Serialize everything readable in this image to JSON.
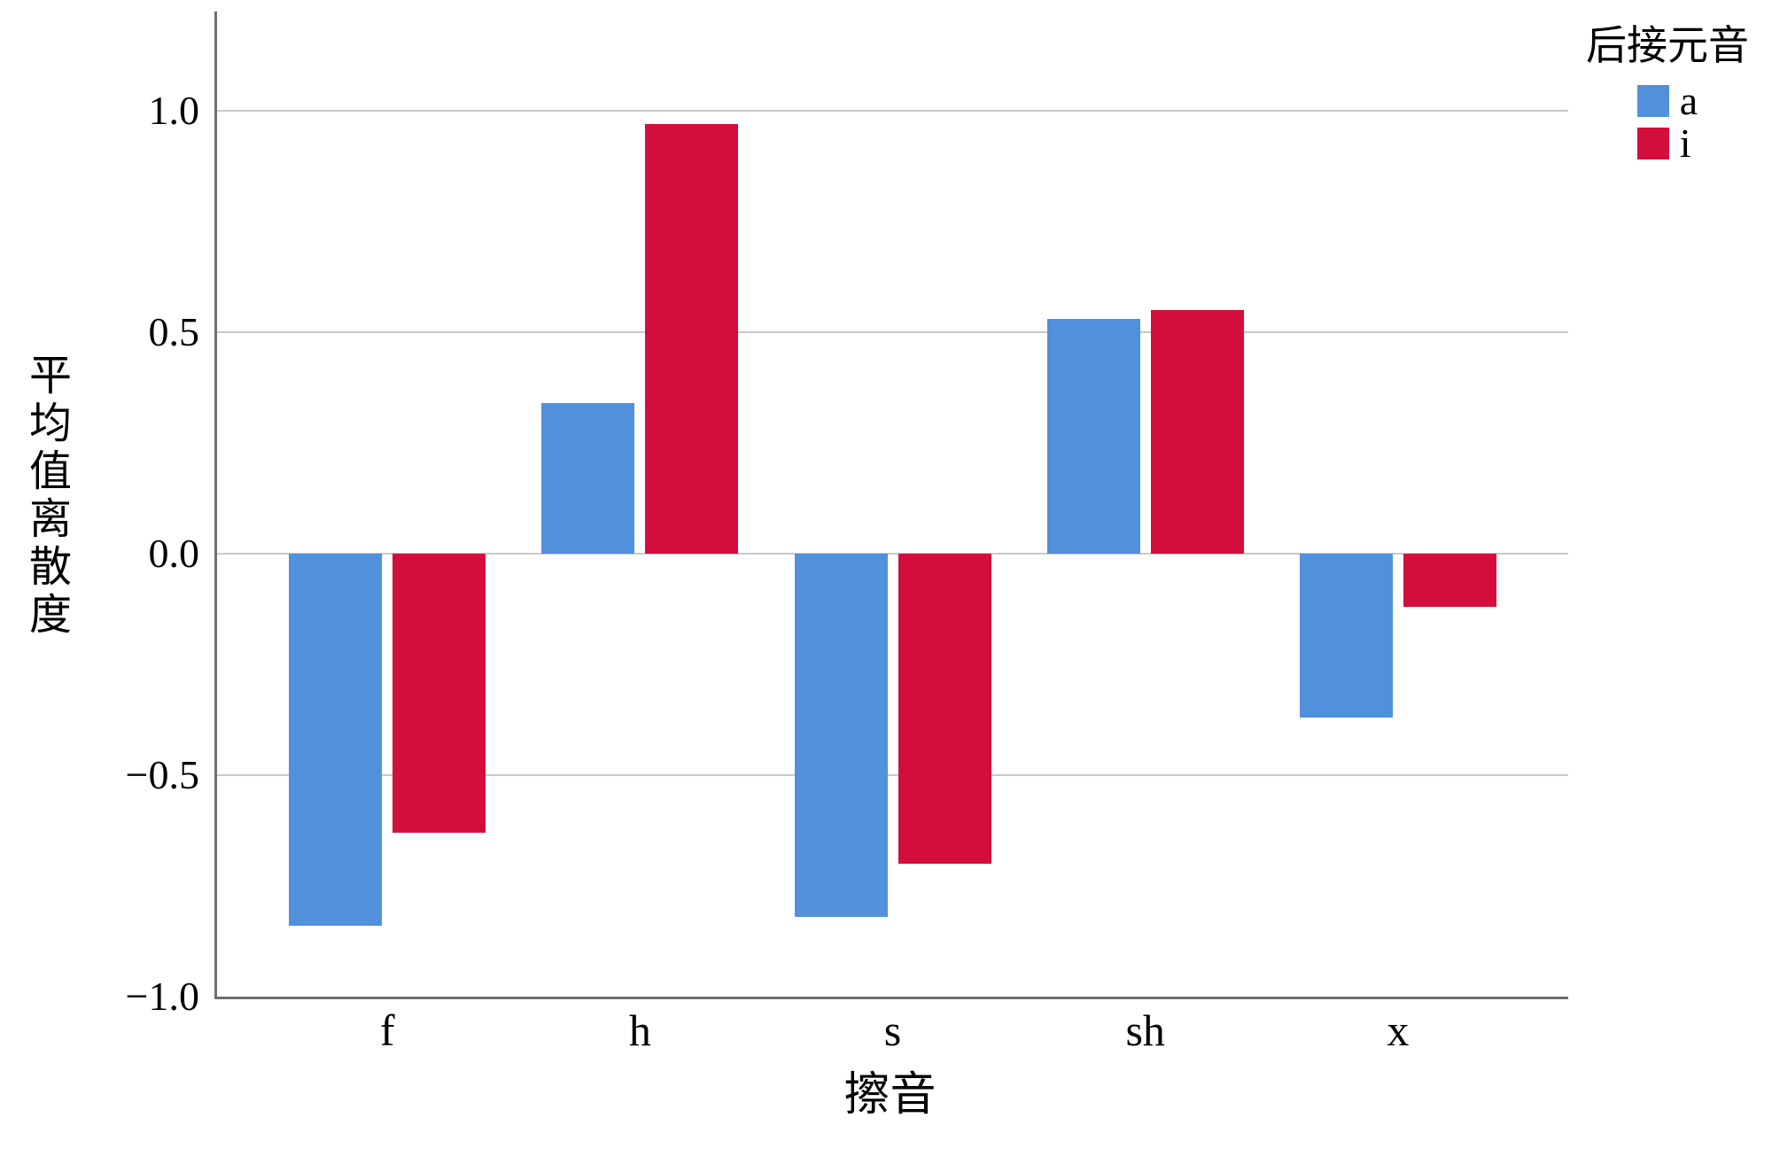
{
  "figure": {
    "x_axis_title": "擦音",
    "y_axis_title": "平均值离散度",
    "y_axis_title_chars": [
      "平",
      "均",
      "值",
      "离",
      "散",
      "度"
    ]
  },
  "legend": {
    "title": "后接元音",
    "items": [
      {
        "label": "a",
        "color": "#5190DB"
      },
      {
        "label": "i",
        "color": "#D40E3C"
      }
    ]
  },
  "chart_data": {
    "type": "bar",
    "title": "",
    "xlabel": "擦音",
    "ylabel": "平均值离散度",
    "categories": [
      "f",
      "h",
      "s",
      "sh",
      "x"
    ],
    "series": [
      {
        "name": "a",
        "color": "#5190DB",
        "values": [
          -0.84,
          0.34,
          -0.82,
          0.53,
          -0.37
        ]
      },
      {
        "name": "i",
        "color": "#D40E3C",
        "values": [
          -0.63,
          0.97,
          -0.7,
          0.55,
          -0.12
        ]
      }
    ],
    "ylim": [
      -1.0,
      1.224
    ],
    "yticks": [
      1.0,
      0.5,
      0.0,
      -0.5,
      -1.0
    ],
    "ytick_labels": [
      "1.0",
      "0.5",
      "0.0",
      "−0.5",
      "−1.0"
    ],
    "grid": true,
    "legend_title": "后接元音",
    "legend_position": "top-right",
    "colors": {
      "axis": "#6e6e6e",
      "gridline": "#c9c9c9",
      "text": "#000000",
      "background": "#ffffff"
    }
  }
}
